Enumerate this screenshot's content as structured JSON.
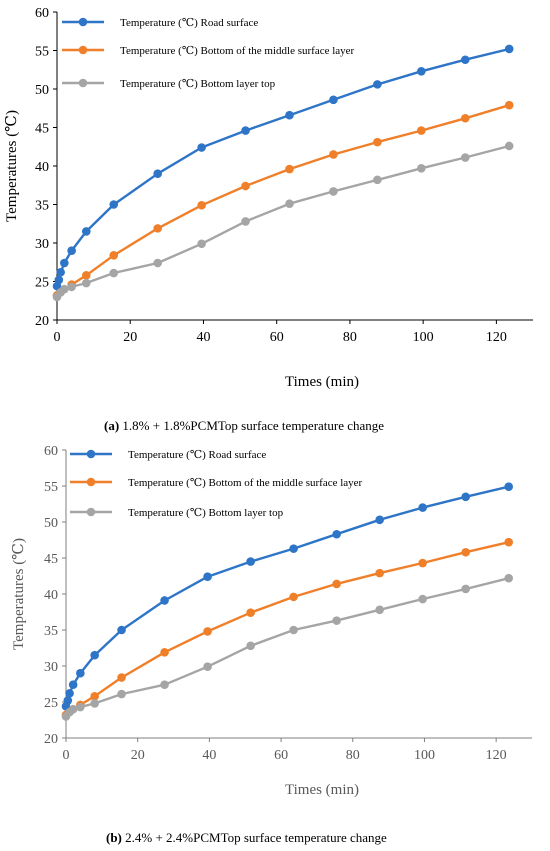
{
  "chart_data": [
    {
      "type": "line",
      "xlabel": "Times (min)",
      "ylabel": "Temperatures (℃)",
      "caption_label": "(a)",
      "caption_text": " 1.8% + 1.8%PCMTop surface temperature change",
      "xlim": [
        0,
        130
      ],
      "ylim": [
        20,
        60
      ],
      "xticks": [
        "0",
        "20",
        "40",
        "60",
        "80",
        "100",
        "120"
      ],
      "yticks": [
        "20",
        "25",
        "30",
        "35",
        "40",
        "45",
        "50",
        "55",
        "60"
      ],
      "legend_position": "top-left",
      "series": [
        {
          "name": "Temperature (℃) Road surface",
          "color": "#2e75c7",
          "x": [
            0,
            0.5,
            1,
            2,
            4,
            8,
            15.5,
            27.5,
            39.5,
            51.5,
            63.5,
            75.5,
            87.5,
            99.5,
            111.5,
            123.5
          ],
          "y": [
            24.4,
            25.2,
            26.2,
            27.4,
            29.0,
            31.5,
            35.0,
            39.0,
            42.4,
            44.6,
            46.6,
            48.6,
            50.6,
            52.3,
            53.8,
            55.2
          ]
        },
        {
          "name": "Temperature (℃) Bottom of the middle surface layer",
          "color": "#f07f29",
          "x": [
            0,
            4,
            8,
            15.5,
            27.5,
            39.5,
            51.5,
            63.5,
            75.5,
            87.5,
            99.5,
            111.5,
            123.5
          ],
          "y": [
            23.2,
            24.6,
            25.8,
            28.4,
            31.9,
            34.9,
            37.4,
            39.6,
            41.5,
            43.1,
            44.6,
            46.2,
            47.9
          ]
        },
        {
          "name": "Temperature (℃) Bottom layer top",
          "color": "#a5a5a5",
          "x": [
            0,
            1,
            2,
            4,
            8,
            15.5,
            27.5,
            39.5,
            51.5,
            63.5,
            75.5,
            87.5,
            99.5,
            111.5,
            123.5
          ],
          "y": [
            23.0,
            23.6,
            24.0,
            24.3,
            24.8,
            26.1,
            27.4,
            29.9,
            32.8,
            35.1,
            36.7,
            38.2,
            39.7,
            41.1,
            42.6
          ]
        }
      ]
    },
    {
      "type": "line",
      "xlabel": "Times (min)",
      "ylabel": "Temperatures (℃)",
      "caption_label": "(b)",
      "caption_text": " 2.4% + 2.4%PCMTop surface temperature change",
      "xlim": [
        0,
        130
      ],
      "ylim": [
        20,
        60
      ],
      "xticks": [
        "0",
        "20",
        "40",
        "60",
        "80",
        "100",
        "120"
      ],
      "yticks": [
        "20",
        "25",
        "30",
        "35",
        "40",
        "45",
        "50",
        "55",
        "60"
      ],
      "legend_position": "top-left",
      "series": [
        {
          "name": "Temperature (℃) Road surface",
          "color": "#2e75c7",
          "x": [
            0,
            0.5,
            1,
            2,
            4,
            8,
            15.5,
            27.5,
            39.5,
            51.5,
            63.5,
            75.5,
            87.5,
            99.5,
            111.5,
            123.5
          ],
          "y": [
            24.4,
            25.2,
            26.2,
            27.4,
            29.0,
            31.5,
            35.0,
            39.1,
            42.4,
            44.5,
            46.3,
            48.3,
            50.3,
            52.0,
            53.5,
            54.9
          ]
        },
        {
          "name": "Temperature (℃) Bottom of the middle surface layer",
          "color": "#f07f29",
          "x": [
            0,
            4,
            8,
            15.5,
            27.5,
            39.5,
            51.5,
            63.5,
            75.5,
            87.5,
            99.5,
            111.5,
            123.5
          ],
          "y": [
            23.2,
            24.6,
            25.8,
            28.4,
            31.9,
            34.8,
            37.4,
            39.6,
            41.4,
            42.9,
            44.3,
            45.8,
            47.2
          ]
        },
        {
          "name": "Temperature (℃) Bottom layer top",
          "color": "#a5a5a5",
          "x": [
            0,
            1,
            2,
            4,
            8,
            15.5,
            27.5,
            39.5,
            51.5,
            63.5,
            75.5,
            87.5,
            99.5,
            111.5,
            123.5
          ],
          "y": [
            23.0,
            23.6,
            24.0,
            24.3,
            24.8,
            26.1,
            27.4,
            29.9,
            32.8,
            35.0,
            36.3,
            37.8,
            39.3,
            40.7,
            42.2
          ]
        }
      ]
    }
  ]
}
